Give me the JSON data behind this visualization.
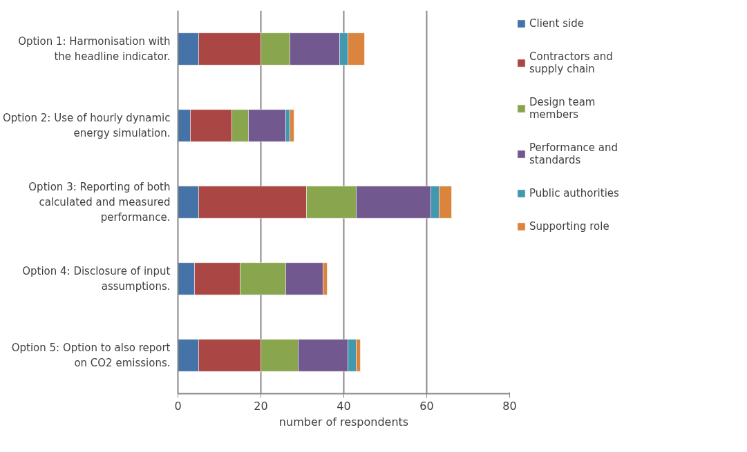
{
  "chart_data": {
    "type": "bar",
    "orientation": "horizontal",
    "stacked": true,
    "xlabel": "number of respondents",
    "categories": [
      "Option 1: Harmonisation with\nthe headline indicator.",
      "Option 2: Use of hourly dynamic\nenergy simulation.",
      "Option 3: Reporting of both\ncalculated and measured\nperformance.",
      "Option 4: Disclosure of input\nassumptions.",
      "Option 5: Option to also report\non CO2 emissions."
    ],
    "series": [
      {
        "name": "Client side",
        "color": "#4572a7",
        "values": [
          5,
          3,
          5,
          4,
          5
        ]
      },
      {
        "name": "Contractors and\nsupply chain",
        "color": "#aa4643",
        "values": [
          15,
          10,
          26,
          11,
          15
        ]
      },
      {
        "name": "Design team\nmembers",
        "color": "#89a54e",
        "values": [
          7,
          4,
          12,
          11,
          9
        ]
      },
      {
        "name": "Performance and\nstandards",
        "color": "#71588f",
        "values": [
          12,
          9,
          18,
          9,
          12
        ]
      },
      {
        "name": "Public authorities",
        "color": "#4198af",
        "values": [
          2,
          1,
          2,
          0,
          2
        ]
      },
      {
        "name": "Supporting role",
        "color": "#db843d",
        "values": [
          4,
          1,
          3,
          1,
          1
        ]
      }
    ],
    "xlim": [
      0,
      80
    ],
    "xticks": [
      0,
      20,
      40,
      60,
      80
    ],
    "grid": "x",
    "legend": "right"
  }
}
